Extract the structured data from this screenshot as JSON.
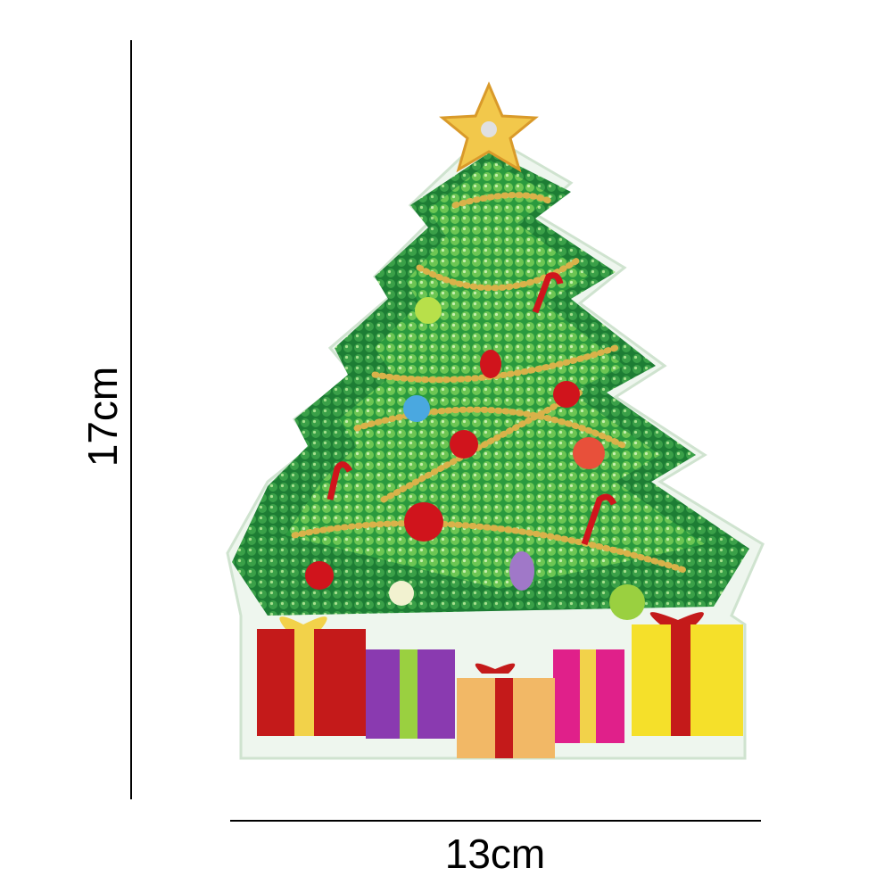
{
  "dimensions": {
    "height_label": "17cm",
    "width_label": "13cm"
  },
  "product": {
    "subject": "christmas-tree-with-presents",
    "colors": {
      "tree_dark": "#1f8a3a",
      "tree_light": "#5cc04a",
      "garland": "#d9b24a",
      "star": "#f2c84b",
      "ornament_red": "#d0141c",
      "acrylic_edge": "#e6f2e6"
    }
  }
}
